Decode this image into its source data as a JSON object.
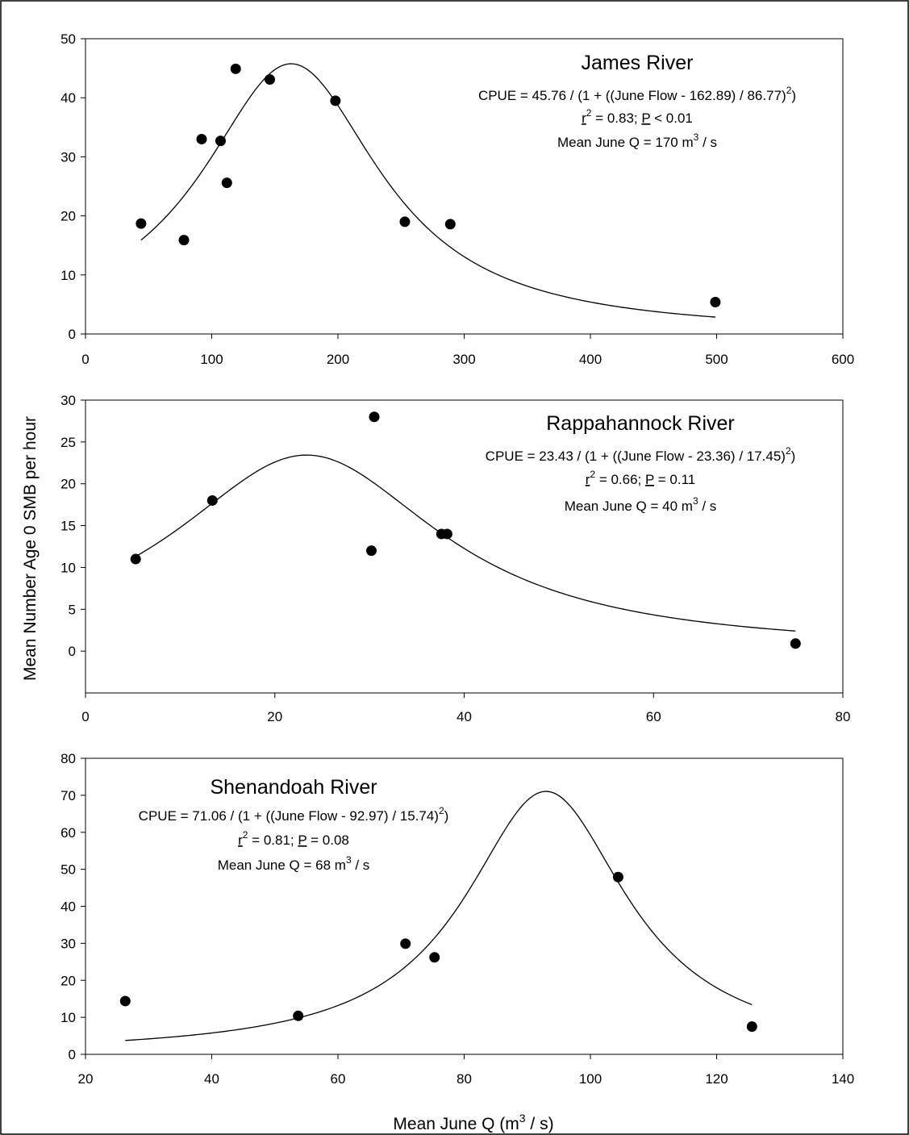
{
  "figure": {
    "ylabel": "Mean Number Age 0 SMB per hour",
    "xlabel_main": "Mean June Q (m",
    "xlabel_sup": "3",
    "xlabel_tail": " / s)"
  },
  "chart_data": [
    {
      "type": "scatter",
      "title": "James River",
      "equation": {
        "main": "CPUE = 45.76 / (1 + ((June Flow - 162.89) / 86.77)",
        "sup": "2",
        "tail": ")"
      },
      "stats": {
        "r_letter": "r",
        "r_sup": "2",
        "r_value": " = 0.83; ",
        "p_letter": "P",
        "p_value": " < 0.01"
      },
      "mean_q": {
        "main": "Mean June Q = 170 m",
        "sup": "3",
        "tail": " / s"
      },
      "xlim": [
        0,
        600
      ],
      "ylim": [
        0,
        50
      ],
      "xticks": [
        0,
        100,
        200,
        300,
        400,
        500,
        600
      ],
      "yticks": [
        0,
        10,
        20,
        30,
        40,
        50
      ],
      "points": [
        [
          44,
          18.7
        ],
        [
          78,
          15.9
        ],
        [
          92,
          33
        ],
        [
          107,
          32.7
        ],
        [
          112,
          25.6
        ],
        [
          119,
          44.9
        ],
        [
          146,
          43.1
        ],
        [
          198,
          39.5
        ],
        [
          253,
          19
        ],
        [
          289,
          18.6
        ],
        [
          499,
          5.4
        ]
      ],
      "fit": {
        "a": 45.76,
        "x0": 162.89,
        "b": 86.77,
        "xrange": [
          44,
          499
        ]
      }
    },
    {
      "type": "scatter",
      "title": "Rappahannock River",
      "equation": {
        "main": "CPUE = 23.43 / (1 + ((June Flow - 23.36) / 17.45)",
        "sup": "2",
        "tail": ")"
      },
      "stats": {
        "r_letter": "r",
        "r_sup": "2",
        "r_value": " = 0.66; ",
        "p_letter": "P",
        "p_value": " = 0.11"
      },
      "mean_q": {
        "main": "Mean June Q = 40 m",
        "sup": "3",
        "tail": " / s"
      },
      "xlim": [
        0,
        80
      ],
      "ylim": [
        -5,
        30
      ],
      "xticks": [
        0,
        20,
        40,
        60,
        80
      ],
      "yticks": [
        0,
        5,
        10,
        15,
        20,
        25,
        30
      ],
      "points": [
        [
          5.3,
          11
        ],
        [
          13.4,
          18
        ],
        [
          30.2,
          12
        ],
        [
          30.5,
          28
        ],
        [
          37.6,
          14
        ],
        [
          38.2,
          14
        ],
        [
          75,
          0.9
        ]
      ],
      "fit": {
        "a": 23.43,
        "x0": 23.36,
        "b": 17.45,
        "xrange": [
          5.3,
          75
        ]
      }
    },
    {
      "type": "scatter",
      "title": "Shenandoah River",
      "equation": {
        "main": "CPUE = 71.06 / (1 + ((June Flow - 92.97) / 15.74)",
        "sup": "2",
        "tail": ")"
      },
      "stats": {
        "r_letter": "r",
        "r_sup": "2",
        "r_value": " = 0.81; ",
        "p_letter": "P",
        "p_value": " = 0.08"
      },
      "mean_q": {
        "main": "Mean June Q = 68 m",
        "sup": "3",
        "tail": " / s"
      },
      "xlim": [
        20,
        140
      ],
      "ylim": [
        0,
        80
      ],
      "xticks": [
        20,
        40,
        60,
        80,
        100,
        120,
        140
      ],
      "yticks": [
        0,
        10,
        20,
        30,
        40,
        50,
        60,
        70,
        80
      ],
      "points": [
        [
          26.3,
          14.4
        ],
        [
          53.7,
          10.4
        ],
        [
          70.7,
          29.9
        ],
        [
          75.3,
          26.2
        ],
        [
          104.4,
          47.9
        ],
        [
          125.6,
          7.5
        ]
      ],
      "fit": {
        "a": 71.06,
        "x0": 92.97,
        "b": 15.74,
        "xrange": [
          26.3,
          125.6
        ]
      }
    }
  ]
}
